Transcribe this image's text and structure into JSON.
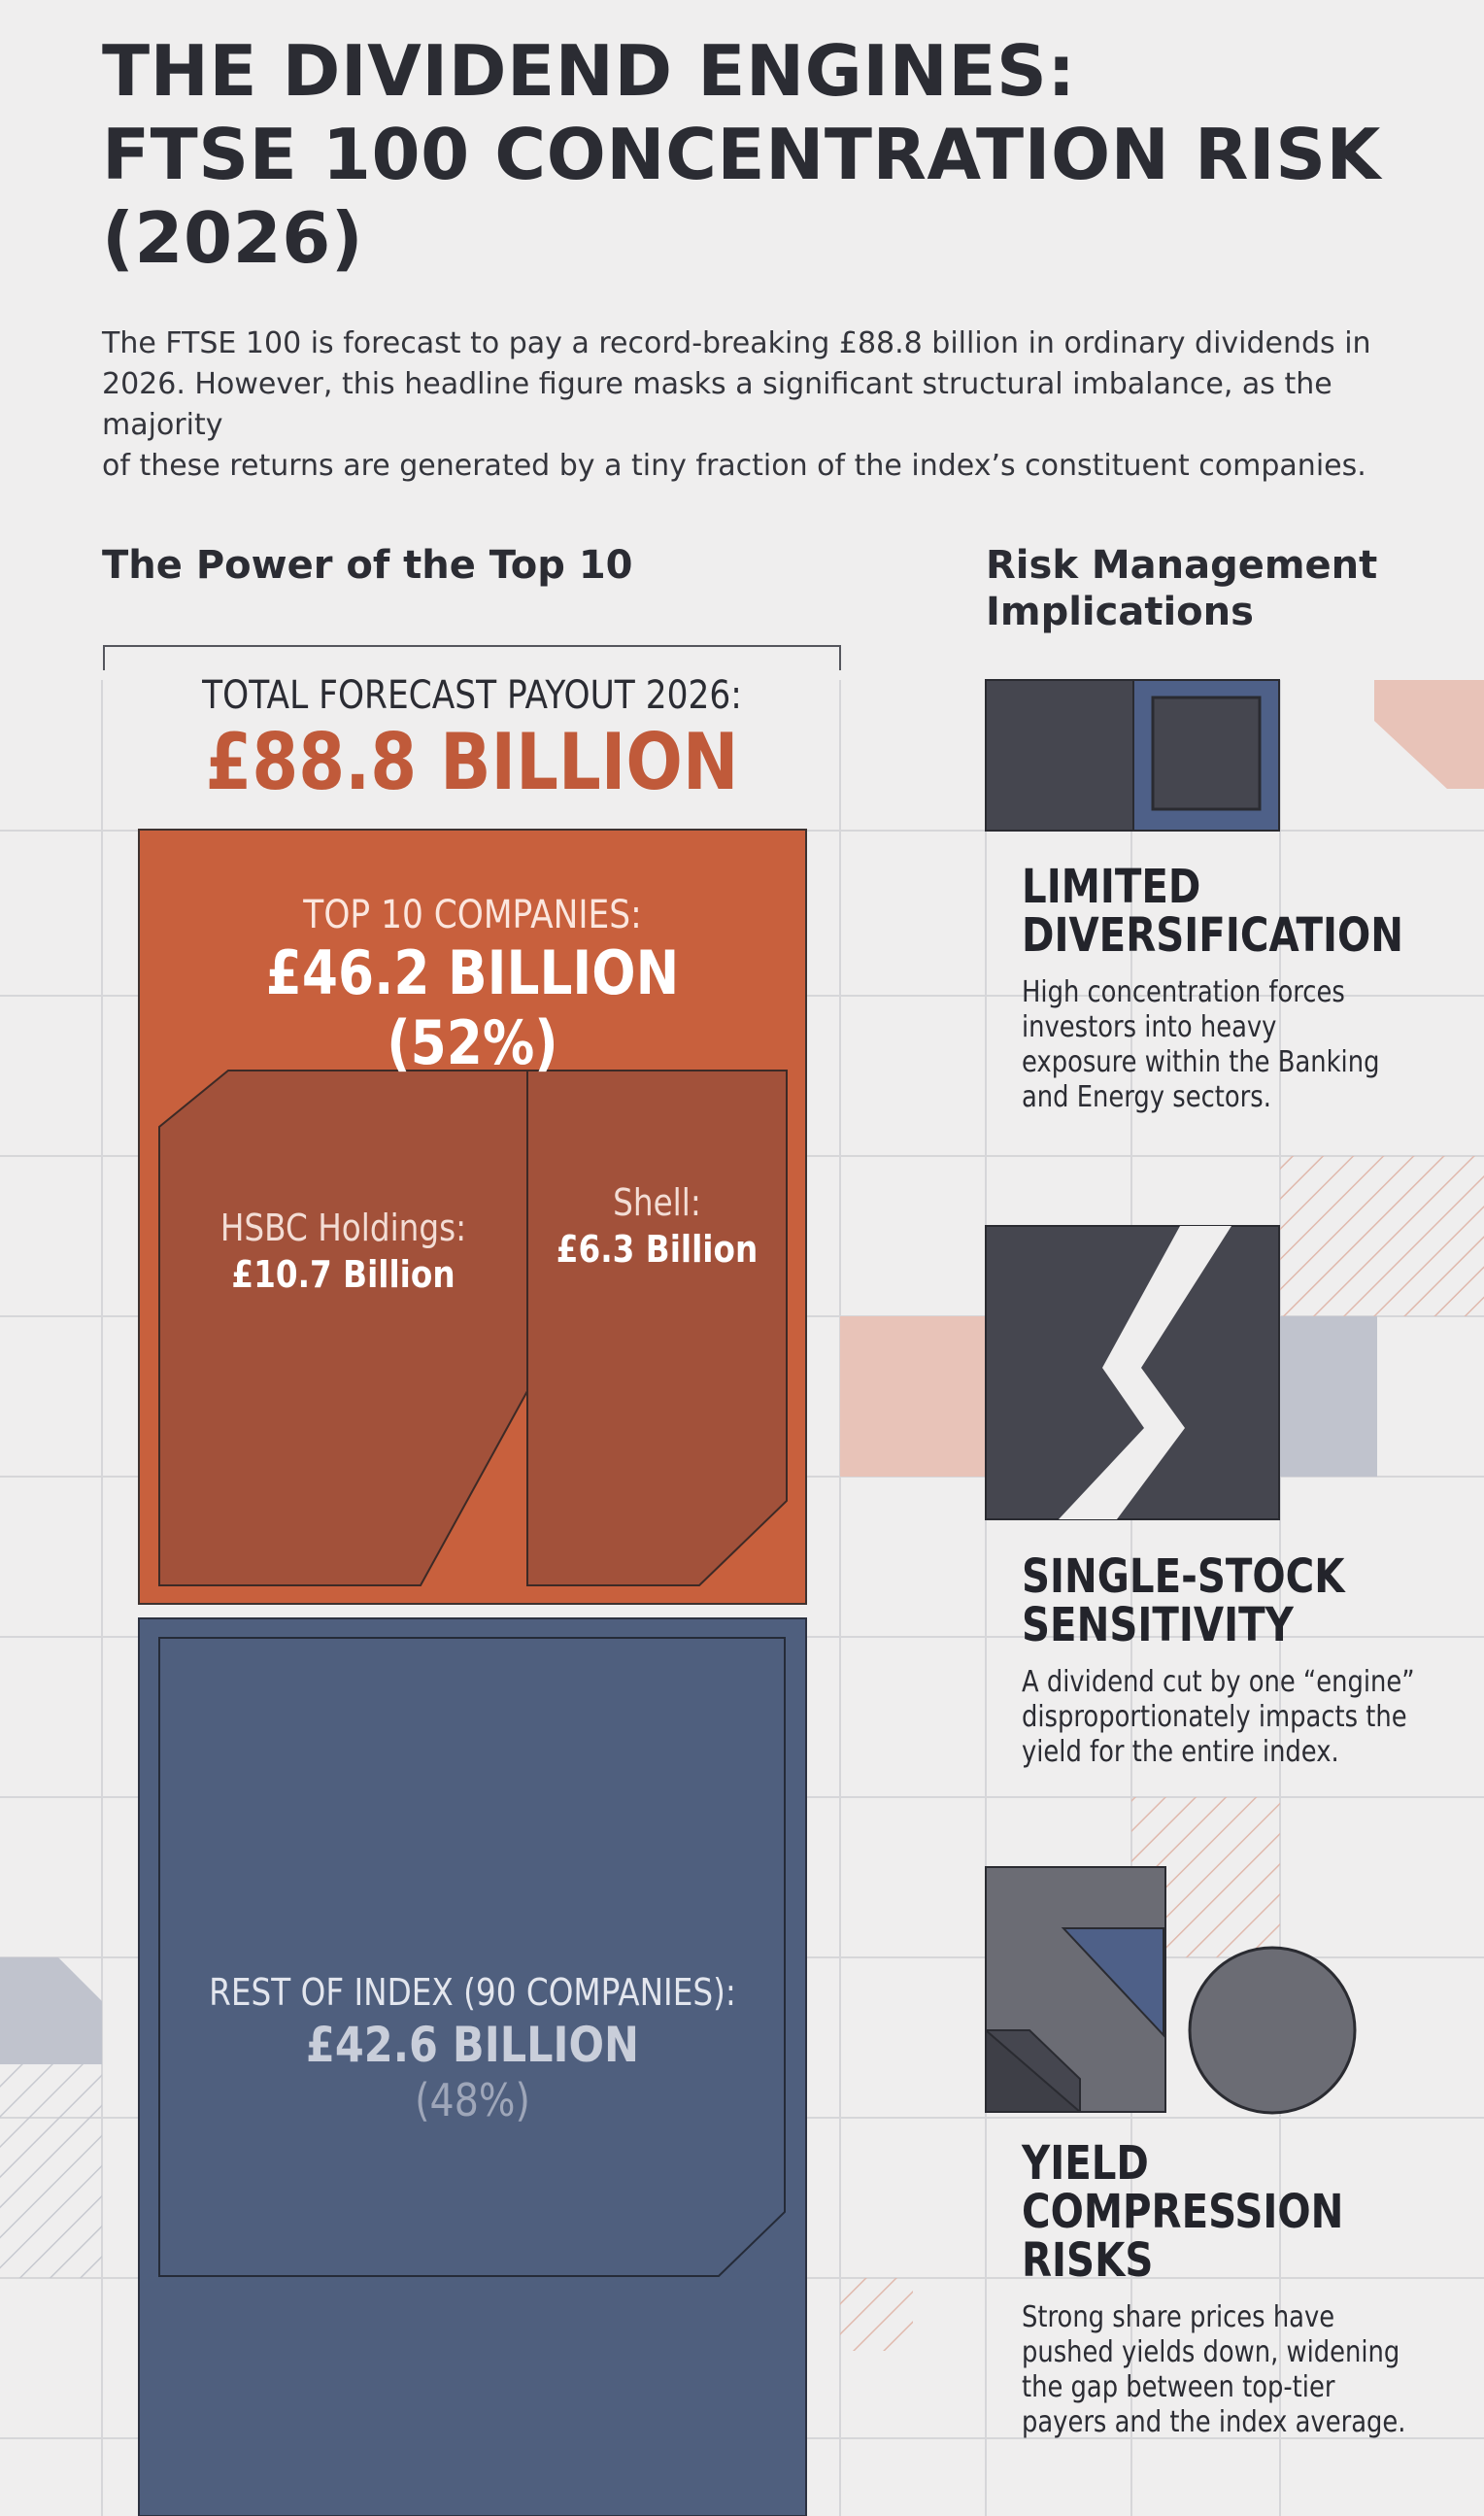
{
  "title": {
    "lines": [
      "THE DIVIDEND ENGINES:",
      "FTSE 100 CONCENTRATION RISK",
      "(2026)"
    ]
  },
  "intro": {
    "lines": [
      "The FTSE 100 is forecast to pay a record-breaking £88.8 billion in ordinary dividends in",
      "2026. However, this headline figure masks a significant structural imbalance, as the majority",
      "of these returns are generated by a tiny fraction of the index’s constituent companies."
    ]
  },
  "left_section": {
    "heading": "The Power of the Top 10",
    "total": {
      "label": "TOTAL FORECAST PAYOUT 2026:",
      "value": "£88.8 BILLION"
    },
    "top10": {
      "label": "TOP 10 COMPANIES:",
      "value": "£46.2 BILLION (52%)",
      "share_pct": 52
    },
    "hsbc": {
      "label": "HSBC Holdings:",
      "value": "£10.7 Billion"
    },
    "shell": {
      "label": "Shell:",
      "value": "£6.3 Billion"
    },
    "rest": {
      "label": "REST OF INDEX (90 COMPANIES):",
      "value": "£42.6 BILLION",
      "percent": "(48%)",
      "share_pct": 48
    }
  },
  "right_section": {
    "heading_lines": [
      "Risk Management",
      "Implications"
    ],
    "risks": [
      {
        "icon": "nested-squares-icon",
        "title_lines": [
          "LIMITED",
          "DIVERSIFICATION"
        ],
        "desc_lines": [
          "High concentration forces",
          "investors into heavy",
          "exposure within the Banking",
          "and Energy sectors."
        ]
      },
      {
        "icon": "broken-block-icon",
        "title_lines": [
          "SINGLE-STOCK",
          "SENSITIVITY"
        ],
        "desc_lines": [
          "A dividend cut by one “engine”",
          "disproportionately impacts the",
          "yield for the entire index."
        ]
      },
      {
        "icon": "shapes-compression-icon",
        "title_lines": [
          "YIELD",
          "COMPRESSION",
          "RISKS"
        ],
        "desc_lines": [
          "Strong share prices have",
          "pushed yields down, widening",
          "the gap between top-tier",
          "payers and the index average."
        ]
      }
    ]
  },
  "colors": {
    "background": "#efeeee",
    "top10": "#c8603d",
    "top10_inner": "#a2513a",
    "rest": "#4f5f7e",
    "dark_block": "#45464f",
    "blue_accent": "#4e6088",
    "pink_accent": "#e8c3b8",
    "grey_accent": "#c0c3cd"
  }
}
